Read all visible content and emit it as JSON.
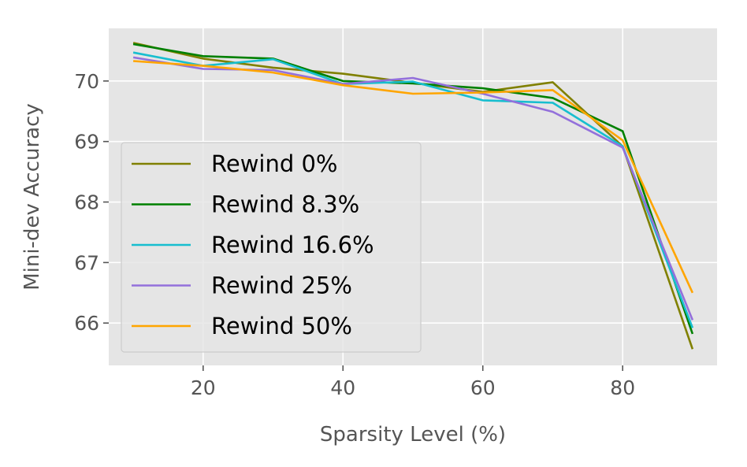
{
  "chart_data": {
    "type": "line",
    "xlabel": "Sparsity Level (%)",
    "ylabel": "Mini-dev Accuracy",
    "xlim": [
      6.5,
      93.5
    ],
    "ylim": [
      65.3,
      70.87
    ],
    "xticks": [
      20,
      40,
      60,
      80
    ],
    "yticks": [
      66,
      67,
      68,
      69,
      70
    ],
    "grid": true,
    "legend_position": "lower-left",
    "x": [
      10,
      20,
      30,
      40,
      50,
      60,
      70,
      80,
      90
    ],
    "series": [
      {
        "name": "Rewind 0%",
        "color": "#808000",
        "values": [
          70.63,
          70.37,
          70.22,
          70.12,
          69.97,
          69.82,
          69.98,
          68.92,
          65.57
        ]
      },
      {
        "name": "Rewind 8.3%",
        "color": "#008000",
        "values": [
          70.61,
          70.41,
          70.37,
          70.0,
          69.96,
          69.88,
          69.72,
          69.17,
          65.82
        ]
      },
      {
        "name": "Rewind 16.6%",
        "color": "#17becf",
        "values": [
          70.47,
          70.25,
          70.36,
          69.95,
          69.99,
          69.68,
          69.64,
          68.92,
          65.92
        ]
      },
      {
        "name": "Rewind 25%",
        "color": "#9370db",
        "values": [
          70.39,
          70.2,
          70.18,
          69.95,
          70.05,
          69.79,
          69.49,
          68.9,
          66.05
        ]
      },
      {
        "name": "Rewind 50%",
        "color": "#ffa500",
        "values": [
          70.33,
          70.25,
          70.14,
          69.93,
          69.79,
          69.81,
          69.85,
          69.02,
          66.5
        ]
      }
    ]
  }
}
